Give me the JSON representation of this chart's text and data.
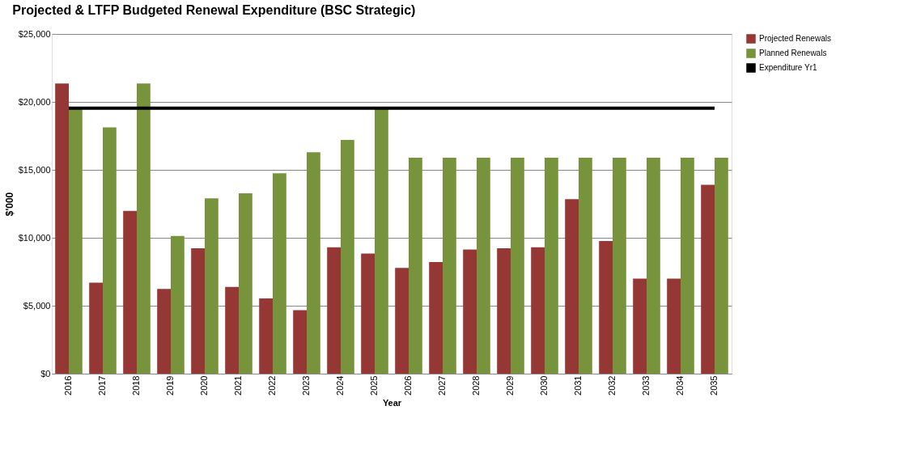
{
  "chart_data": {
    "type": "bar",
    "title": "Projected & LTFP Budgeted Renewal Expenditure (BSC Strategic)",
    "xlabel": "Year",
    "ylabel": "$'000",
    "categories": [
      "2016",
      "2017",
      "2018",
      "2019",
      "2020",
      "2021",
      "2022",
      "2023",
      "2024",
      "2025",
      "2026",
      "2027",
      "2028",
      "2029",
      "2030",
      "2031",
      "2032",
      "2033",
      "2034",
      "2035"
    ],
    "series": [
      {
        "name": "Projected Renewals",
        "color": "#953735",
        "values": [
          21360,
          6700,
          11980,
          6240,
          9220,
          6380,
          5540,
          4680,
          9300,
          8840,
          7780,
          8220,
          9140,
          9220,
          9300,
          12840,
          9760,
          7000,
          7000,
          13900
        ]
      },
      {
        "name": "Planned Renewals",
        "color": "#77933c",
        "values": [
          19540,
          18120,
          21360,
          10140,
          12900,
          13280,
          14740,
          16300,
          17200,
          19540,
          15900,
          15900,
          15900,
          15900,
          15900,
          15900,
          15900,
          15900,
          15900,
          15900
        ]
      },
      {
        "name": "Expenditure Yr1",
        "type": "line",
        "color": "#000000",
        "values": [
          19540,
          19540,
          19540,
          19540,
          19540,
          19540,
          19540,
          19540,
          19540,
          19540,
          19540,
          19540,
          19540,
          19540,
          19540,
          19540,
          19540,
          19540,
          19540,
          19540
        ]
      }
    ],
    "ylim": [
      0,
      25000
    ],
    "yticks": [
      {
        "value": 0,
        "label": "$0"
      },
      {
        "value": 5000,
        "label": "$5,000"
      },
      {
        "value": 10000,
        "label": "$10,000"
      },
      {
        "value": 15000,
        "label": "$15,000"
      },
      {
        "value": 20000,
        "label": "$20,000"
      },
      {
        "value": 25000,
        "label": "$25,000"
      }
    ],
    "grid": "y",
    "legend": "right"
  }
}
